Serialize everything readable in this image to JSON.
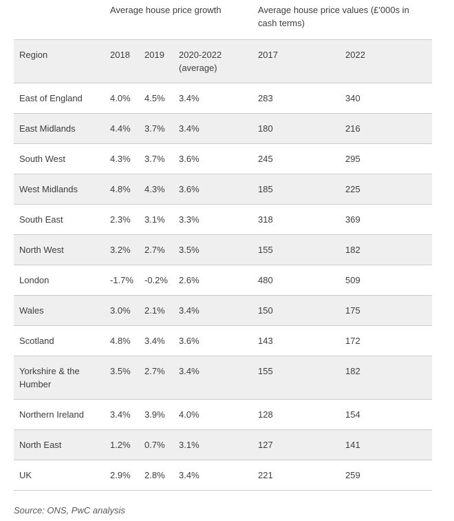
{
  "table": {
    "group_headers": {
      "growth": "Average house price growth",
      "values": "Average house price values (£'000s in cash terms)"
    },
    "columns": [
      "Region",
      "2018",
      "2019",
      "2020-2022 (average)",
      "2017",
      "2022"
    ],
    "rows": [
      [
        "East of England",
        "4.0%",
        "4.5%",
        "3.4%",
        "283",
        "340"
      ],
      [
        "East Midlands",
        "4.4%",
        "3.7%",
        "3.4%",
        "180",
        "216"
      ],
      [
        "South West",
        "4.3%",
        "3.7%",
        "3.6%",
        "245",
        "295"
      ],
      [
        "West Midlands",
        "4.8%",
        "4.3%",
        "3.6%",
        "185",
        "225"
      ],
      [
        "South East",
        "2.3%",
        "3.1%",
        "3.3%",
        "318",
        "369"
      ],
      [
        "North West",
        "3.2%",
        "2.7%",
        "3.5%",
        "155",
        "182"
      ],
      [
        "London",
        "-1.7%",
        "-0.2%",
        "2.6%",
        "480",
        "509"
      ],
      [
        "Wales",
        "3.0%",
        "2.1%",
        "3.4%",
        "150",
        "175"
      ],
      [
        "Scotland",
        "4.8%",
        "3.4%",
        "3.6%",
        "143",
        "172"
      ],
      [
        "Yorkshire & the Humber",
        "3.5%",
        "2.7%",
        "3.4%",
        "155",
        "182"
      ],
      [
        "Northern Ireland",
        "3.4%",
        "3.9%",
        "4.0%",
        "128",
        "154"
      ],
      [
        "North East",
        "1.2%",
        "0.7%",
        "3.1%",
        "127",
        "141"
      ],
      [
        "UK",
        "2.9%",
        "2.8%",
        "3.4%",
        "221",
        "259"
      ]
    ]
  },
  "source": "Source: ONS, PwC analysis",
  "colors": {
    "stripe": "#efefef",
    "border": "#cccccc",
    "text": "#3d3d3d",
    "source_text": "#595959"
  },
  "chart_data": {
    "type": "table",
    "title": "",
    "column_groups": [
      {
        "label": "Average house price growth",
        "columns": [
          "2018",
          "2019",
          "2020-2022 (average)"
        ]
      },
      {
        "label": "Average house price values (£'000s in cash terms)",
        "columns": [
          "2017",
          "2022"
        ]
      }
    ],
    "categories": [
      "East of England",
      "East Midlands",
      "South West",
      "West Midlands",
      "South East",
      "North West",
      "London",
      "Wales",
      "Scotland",
      "Yorkshire & the Humber",
      "Northern Ireland",
      "North East",
      "UK"
    ],
    "series": [
      {
        "name": "Growth 2018 (%)",
        "values": [
          4.0,
          4.4,
          4.3,
          4.8,
          2.3,
          3.2,
          -1.7,
          3.0,
          4.8,
          3.5,
          3.4,
          1.2,
          2.9
        ]
      },
      {
        "name": "Growth 2019 (%)",
        "values": [
          4.5,
          3.7,
          3.7,
          4.3,
          3.1,
          2.7,
          -0.2,
          2.1,
          3.4,
          2.7,
          3.9,
          0.7,
          2.8
        ]
      },
      {
        "name": "Growth 2020-2022 average (%)",
        "values": [
          3.4,
          3.4,
          3.6,
          3.6,
          3.3,
          3.5,
          2.6,
          3.4,
          3.6,
          3.4,
          4.0,
          3.1,
          3.4
        ]
      },
      {
        "name": "Value 2017 (£'000s)",
        "values": [
          283,
          180,
          245,
          185,
          318,
          155,
          480,
          150,
          143,
          155,
          128,
          127,
          221
        ]
      },
      {
        "name": "Value 2022 (£'000s)",
        "values": [
          340,
          216,
          295,
          225,
          369,
          182,
          509,
          175,
          172,
          182,
          154,
          141,
          259
        ]
      }
    ],
    "source": "Source: ONS, PwC analysis"
  }
}
